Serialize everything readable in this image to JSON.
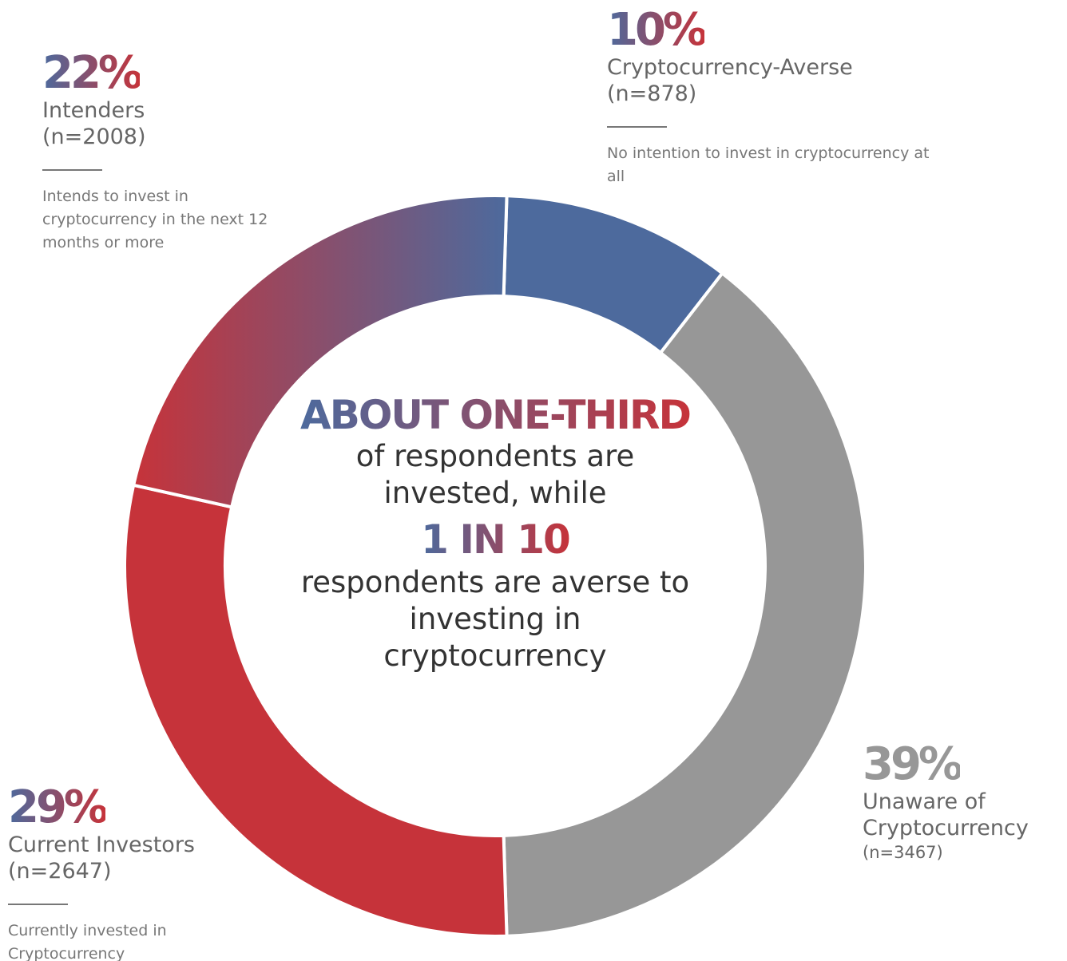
{
  "chart_data": {
    "type": "donut",
    "categories": [
      "Cryptocurrency-Averse",
      "Unaware of Cryptocurrency",
      "Current Investors",
      "Intenders"
    ],
    "values": [
      10,
      39,
      29,
      22
    ],
    "value_labels": [
      "10%",
      "39%",
      "29%",
      "22%"
    ],
    "counts": [
      "(n=878)",
      "(n=3467)",
      "(n=2647)",
      "(n=2008)"
    ],
    "descriptions": [
      "No intention to invest in cryptocurrency at all",
      null,
      "Currently invested in Cryptocurrency",
      "Intends to invest in cryptocurrency in the next 12 months or more"
    ],
    "colors": [
      "#4d6a9d",
      "#979797",
      "#c6333a",
      "#9b5368"
    ],
    "center_text": [
      "ABOUT ONE-THIRD",
      "of respondents are invested, while",
      "1 IN 10",
      "respondents are averse to investing in cryptocurrency"
    ]
  }
}
